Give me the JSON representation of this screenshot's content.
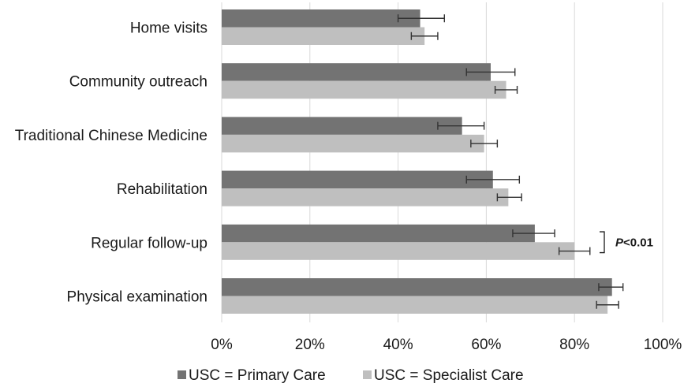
{
  "chart_data": {
    "type": "bar",
    "orientation": "horizontal",
    "categories": [
      "Home visits",
      "Community outreach",
      "Traditional Chinese Medicine",
      "Rehabilitation",
      "Regular follow-up",
      "Physical examination"
    ],
    "series": [
      {
        "name": "USC = Primary Care",
        "color": "#737373",
        "values": [
          45,
          61,
          54.5,
          61.5,
          71,
          88.5
        ],
        "error_low": [
          40,
          55.5,
          49,
          55.5,
          66,
          85.5
        ],
        "error_high": [
          50.5,
          66.5,
          59.5,
          67.5,
          75.5,
          91
        ]
      },
      {
        "name": "USC = Specialist Care",
        "color": "#bfbfbf",
        "values": [
          46,
          64.5,
          59.5,
          65,
          80,
          87.5
        ],
        "error_low": [
          43,
          62,
          56.5,
          62.5,
          76.5,
          85
        ],
        "error_high": [
          49,
          67,
          62.5,
          68,
          83.5,
          90
        ]
      }
    ],
    "x_ticks": [
      "0%",
      "20%",
      "40%",
      "60%",
      "80%",
      "100%"
    ],
    "xlim": [
      0,
      100
    ],
    "grid": "vertical",
    "legend_position": "bottom",
    "annotations": [
      {
        "category": "Regular follow-up",
        "text_italic": "P",
        "text_rest": "<0.01"
      }
    ]
  }
}
